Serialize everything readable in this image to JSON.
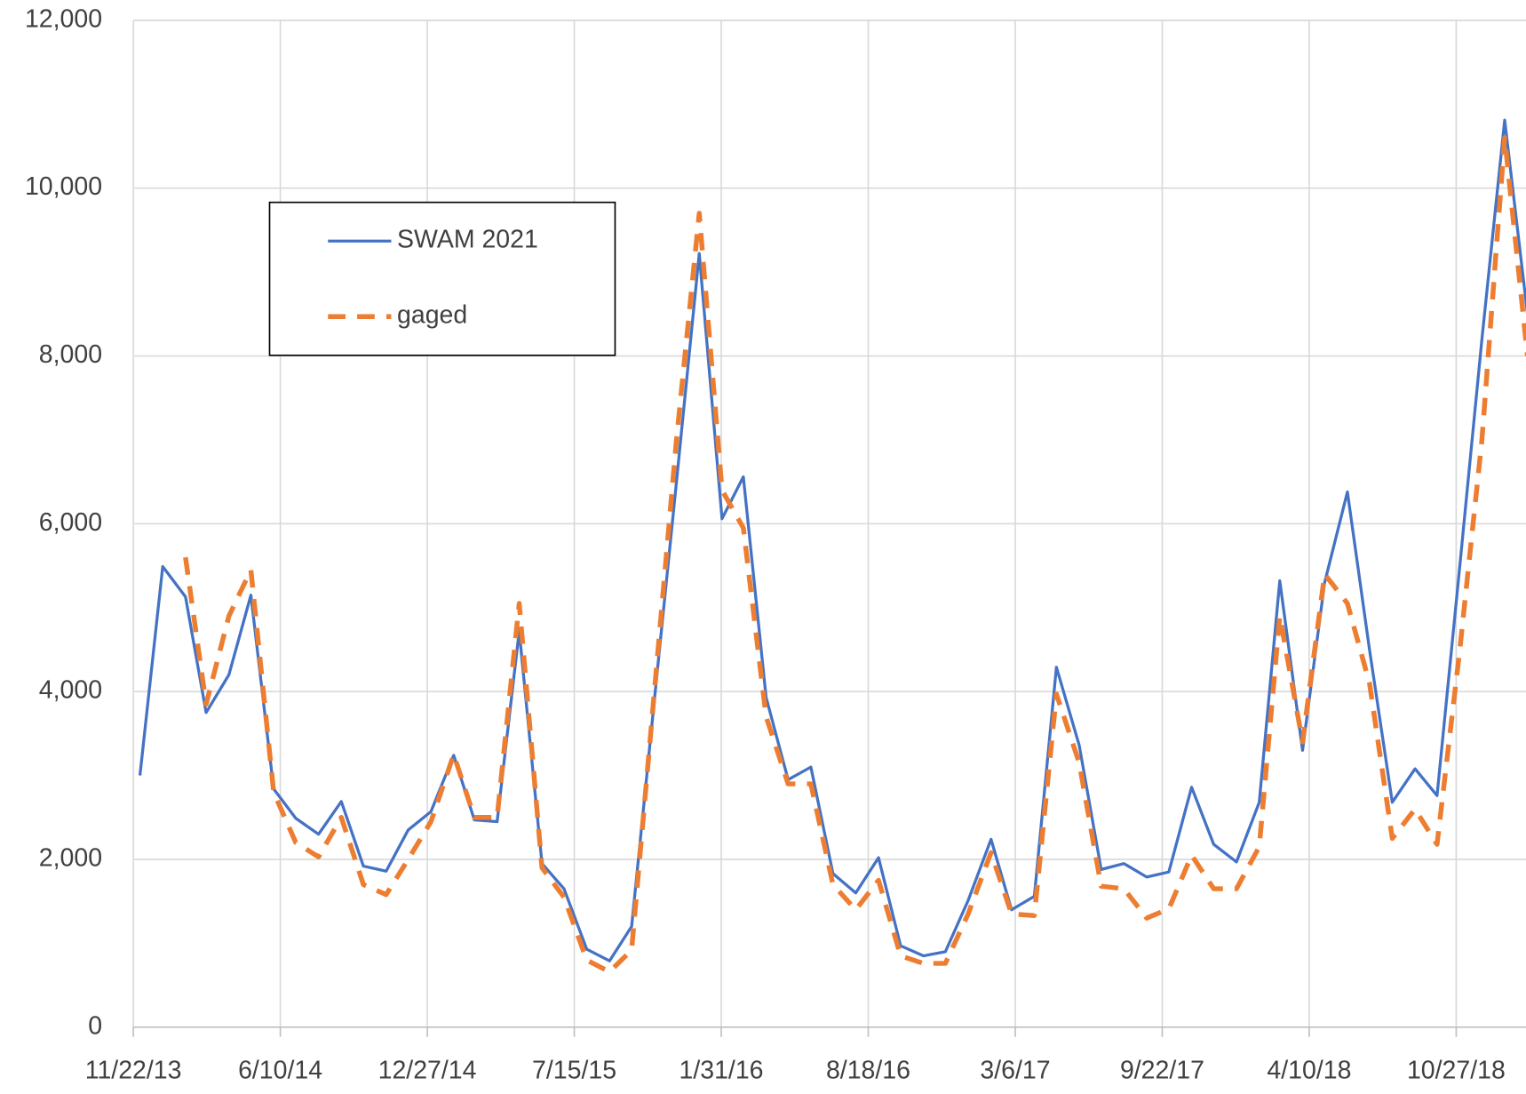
{
  "chart_data": {
    "type": "line",
    "x": [
      "12/1/13",
      "1/1/14",
      "2/1/14",
      "3/1/14",
      "4/1/14",
      "5/1/14",
      "6/1/14",
      "7/1/14",
      "8/1/14",
      "9/1/14",
      "10/1/14",
      "11/1/14",
      "12/1/14",
      "1/1/15",
      "2/1/15",
      "3/1/15",
      "4/1/15",
      "5/1/15",
      "6/1/15",
      "7/1/15",
      "8/1/15",
      "9/1/15",
      "10/1/15",
      "11/1/15",
      "12/1/15",
      "1/1/16",
      "2/1/16",
      "3/1/16",
      "4/1/16",
      "5/1/16",
      "6/1/16",
      "7/1/16",
      "8/1/16",
      "9/1/16",
      "10/1/16",
      "11/1/16",
      "12/1/16",
      "1/1/17",
      "2/1/17",
      "3/1/17",
      "4/1/17",
      "5/1/17",
      "6/1/17",
      "7/1/17",
      "8/1/17",
      "9/1/17",
      "10/1/17",
      "11/1/17",
      "12/1/17",
      "1/1/18",
      "2/1/18",
      "3/1/18",
      "4/1/18",
      "5/1/18",
      "6/1/18",
      "7/1/18",
      "8/1/18",
      "9/1/18",
      "10/1/18",
      "11/1/18",
      "12/1/18",
      "1/1/19",
      "2/1/19"
    ],
    "series": [
      {
        "name": "SWAM 2021",
        "color": "#4472c4",
        "dash": false,
        "values": [
          3000,
          5490,
          5130,
          3750,
          4200,
          5150,
          2840,
          2490,
          2300,
          2690,
          1920,
          1860,
          2350,
          2570,
          3240,
          2470,
          2450,
          4720,
          1950,
          1650,
          930,
          790,
          1200,
          3900,
          6500,
          9220,
          6060,
          6560,
          3930,
          2950,
          3100,
          1830,
          1600,
          2020,
          970,
          850,
          900,
          1510,
          2240,
          1400,
          1560,
          4290,
          3360,
          1880,
          1950,
          1790,
          1850,
          2860,
          2180,
          1970,
          2680,
          5320,
          3300,
          5300,
          6380,
          4500,
          2680,
          3080,
          2760,
          5500,
          8200,
          10810,
          8500
        ]
      },
      {
        "name": "gaged",
        "color": "#ed7d31",
        "dash": true,
        "values": [
          null,
          null,
          5600,
          3850,
          4900,
          5450,
          2800,
          2200,
          2030,
          2500,
          1700,
          1580,
          2000,
          2450,
          3250,
          2500,
          2500,
          5050,
          1900,
          1550,
          800,
          660,
          920,
          4000,
          7000,
          9700,
          6400,
          5950,
          3700,
          2900,
          2900,
          1700,
          1400,
          1750,
          850,
          760,
          760,
          1350,
          2080,
          1350,
          1330,
          3970,
          3150,
          1680,
          1650,
          1300,
          1410,
          2050,
          1650,
          1650,
          2150,
          4900,
          3400,
          5400,
          5050,
          4100,
          2250,
          2600,
          2180,
          4500,
          7000,
          10600,
          8000
        ]
      }
    ],
    "xlim": [
      "11/22/13",
      "1/30/19"
    ],
    "xticks": [
      "11/22/13",
      "6/10/14",
      "12/27/14",
      "7/15/15",
      "1/31/16",
      "8/18/16",
      "3/6/17",
      "9/22/17",
      "4/10/18",
      "10/27/18"
    ],
    "ylim": [
      0,
      12000
    ],
    "yticks": [
      0,
      {
        "value": 2000,
        "label": "2,000"
      },
      {
        "value": 4000,
        "label": "4,000"
      },
      {
        "value": 6000,
        "label": "6,000"
      },
      {
        "value": 8000,
        "label": "8,000"
      },
      {
        "value": 10000,
        "label": "10,000"
      },
      {
        "value": 12000,
        "label": "12,000"
      }
    ],
    "grid": true,
    "legend": "upper left"
  }
}
